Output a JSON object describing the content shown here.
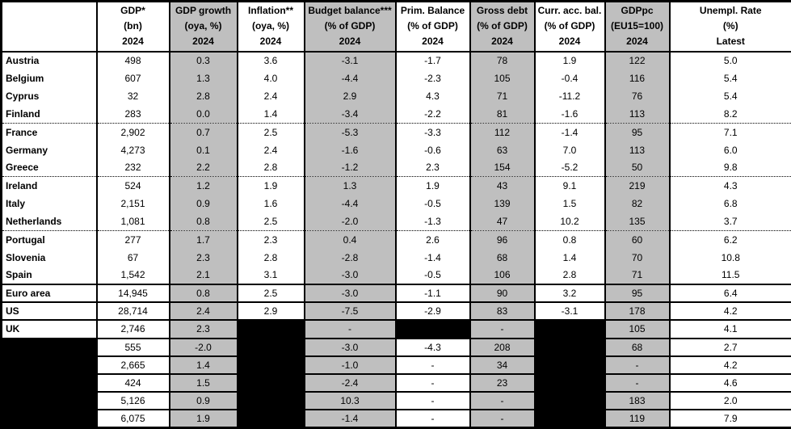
{
  "colors": {
    "shaded_column": "#bfbfbf",
    "redacted_cell": "#000000",
    "border": "#000000",
    "cell_background": "#ffffff"
  },
  "table": {
    "columns": [
      {
        "id": "country",
        "lines": [
          "",
          "",
          ""
        ],
        "shaded": false
      },
      {
        "id": "gdp",
        "lines": [
          "GDP*",
          "(bn)",
          "2024"
        ],
        "shaded": false
      },
      {
        "id": "gdp-growth",
        "lines": [
          "GDP growth",
          "(oya, %)",
          "2024"
        ],
        "shaded": true
      },
      {
        "id": "inflation",
        "lines": [
          "Inflation**",
          "(oya, %)",
          "2024"
        ],
        "shaded": false
      },
      {
        "id": "budget-balance",
        "lines": [
          "Budget balance***",
          "(% of GDP)",
          "2024"
        ],
        "shaded": true
      },
      {
        "id": "primary-balance",
        "lines": [
          "Prim. Balance",
          "(% of GDP)",
          "2024"
        ],
        "shaded": false
      },
      {
        "id": "gross-debt",
        "lines": [
          "Gross debt",
          "(% of GDP)",
          "2024"
        ],
        "shaded": true
      },
      {
        "id": "current-account-balance",
        "lines": [
          "Curr. acc. bal.",
          "(% of GDP)",
          "2024"
        ],
        "shaded": false
      },
      {
        "id": "gdp-per-capita",
        "lines": [
          "GDPpc",
          "(EU15=100)",
          "2024"
        ],
        "shaded": true
      },
      {
        "id": "unemployment-rate",
        "lines": [
          "Unempl. Rate",
          "(%)",
          "Latest"
        ],
        "shaded": false
      }
    ],
    "rows": [
      {
        "name": "Austria",
        "name_black": false,
        "sep": "none",
        "cells": [
          "498",
          "0.3",
          "3.6",
          "-3.1",
          "-1.7",
          "78",
          "1.9",
          "122",
          "5.0"
        ]
      },
      {
        "name": "Belgium",
        "name_black": false,
        "sep": "none",
        "cells": [
          "607",
          "1.3",
          "4.0",
          "-4.4",
          "-2.3",
          "105",
          "-0.4",
          "116",
          "5.4"
        ]
      },
      {
        "name": "Cyprus",
        "name_black": false,
        "sep": "none",
        "cells": [
          "32",
          "2.8",
          "2.4",
          "2.9",
          "4.3",
          "71",
          "-11.2",
          "76",
          "5.4"
        ]
      },
      {
        "name": "Finland",
        "name_black": false,
        "sep": "dotted",
        "cells": [
          "283",
          "0.0",
          "1.4",
          "-3.4",
          "-2.2",
          "81",
          "-1.6",
          "113",
          "8.2"
        ]
      },
      {
        "name": "France",
        "name_black": false,
        "sep": "none",
        "cells": [
          "2,902",
          "0.7",
          "2.5",
          "-5.3",
          "-3.3",
          "112",
          "-1.4",
          "95",
          "7.1"
        ]
      },
      {
        "name": "Germany",
        "name_black": false,
        "sep": "none",
        "cells": [
          "4,273",
          "0.1",
          "2.4",
          "-1.6",
          "-0.6",
          "63",
          "7.0",
          "113",
          "6.0"
        ]
      },
      {
        "name": "Greece",
        "name_black": false,
        "sep": "dotted",
        "cells": [
          "232",
          "2.2",
          "2.8",
          "-1.2",
          "2.3",
          "154",
          "-5.2",
          "50",
          "9.8"
        ]
      },
      {
        "name": "Ireland",
        "name_black": false,
        "sep": "none",
        "cells": [
          "524",
          "1.2",
          "1.9",
          "1.3",
          "1.9",
          "43",
          "9.1",
          "219",
          "4.3"
        ]
      },
      {
        "name": "Italy",
        "name_black": false,
        "sep": "none",
        "cells": [
          "2,151",
          "0.9",
          "1.6",
          "-4.4",
          "-0.5",
          "139",
          "1.5",
          "82",
          "6.8"
        ]
      },
      {
        "name": "Netherlands",
        "name_black": false,
        "sep": "dotted",
        "cells": [
          "1,081",
          "0.8",
          "2.5",
          "-2.0",
          "-1.3",
          "47",
          "10.2",
          "135",
          "3.7"
        ]
      },
      {
        "name": "Portugal",
        "name_black": false,
        "sep": "none",
        "cells": [
          "277",
          "1.7",
          "2.3",
          "0.4",
          "2.6",
          "96",
          "0.8",
          "60",
          "6.2"
        ]
      },
      {
        "name": "Slovenia",
        "name_black": false,
        "sep": "none",
        "cells": [
          "67",
          "2.3",
          "2.8",
          "-2.8",
          "-1.4",
          "68",
          "1.4",
          "70",
          "10.8"
        ]
      },
      {
        "name": "Spain",
        "name_black": false,
        "sep": "solid",
        "cells": [
          "1,542",
          "2.1",
          "3.1",
          "-3.0",
          "-0.5",
          "106",
          "2.8",
          "71",
          "11.5"
        ]
      },
      {
        "name": "Euro area",
        "name_black": false,
        "sep": "solid",
        "cells": [
          "14,945",
          "0.8",
          "2.5",
          "-3.0",
          "-1.1",
          "90",
          "3.2",
          "95",
          "6.4"
        ]
      },
      {
        "name": "US",
        "name_black": false,
        "sep": "solid",
        "cells": [
          "28,714",
          "2.4",
          "2.9",
          "-7.5",
          "-2.9",
          "83",
          "-3.1",
          "178",
          "4.2"
        ]
      },
      {
        "name": "UK",
        "name_black": false,
        "sep": "solid",
        "cells": [
          "2,746",
          "2.3",
          {
            "black": true
          },
          "-",
          {
            "black": true
          },
          "-",
          {
            "black": true
          },
          "105",
          "4.1"
        ]
      },
      {
        "name": "",
        "name_black": true,
        "sep": "solid",
        "cells": [
          "555",
          "-2.0",
          {
            "black": true
          },
          "-3.0",
          "-4.3",
          "208",
          {
            "black": true
          },
          "68",
          "2.7"
        ]
      },
      {
        "name": "",
        "name_black": true,
        "sep": "solid",
        "cells": [
          "2,665",
          "1.4",
          {
            "black": true
          },
          "-1.0",
          "-",
          "34",
          {
            "black": true
          },
          "-",
          "4.2"
        ]
      },
      {
        "name": "",
        "name_black": true,
        "sep": "solid",
        "cells": [
          "424",
          "1.5",
          {
            "black": true
          },
          "-2.4",
          "-",
          "23",
          {
            "black": true
          },
          "-",
          "4.6"
        ]
      },
      {
        "name": "",
        "name_black": true,
        "sep": "solid",
        "cells": [
          "5,126",
          "0.9",
          {
            "black": true
          },
          "10.3",
          "-",
          "-",
          {
            "black": true
          },
          "183",
          "2.0"
        ]
      },
      {
        "name": "",
        "name_black": true,
        "sep": "none",
        "cells": [
          "6,075",
          "1.9",
          {
            "black": true
          },
          "-1.4",
          "-",
          "-",
          {
            "black": true
          },
          "119",
          "7.9"
        ]
      }
    ]
  }
}
